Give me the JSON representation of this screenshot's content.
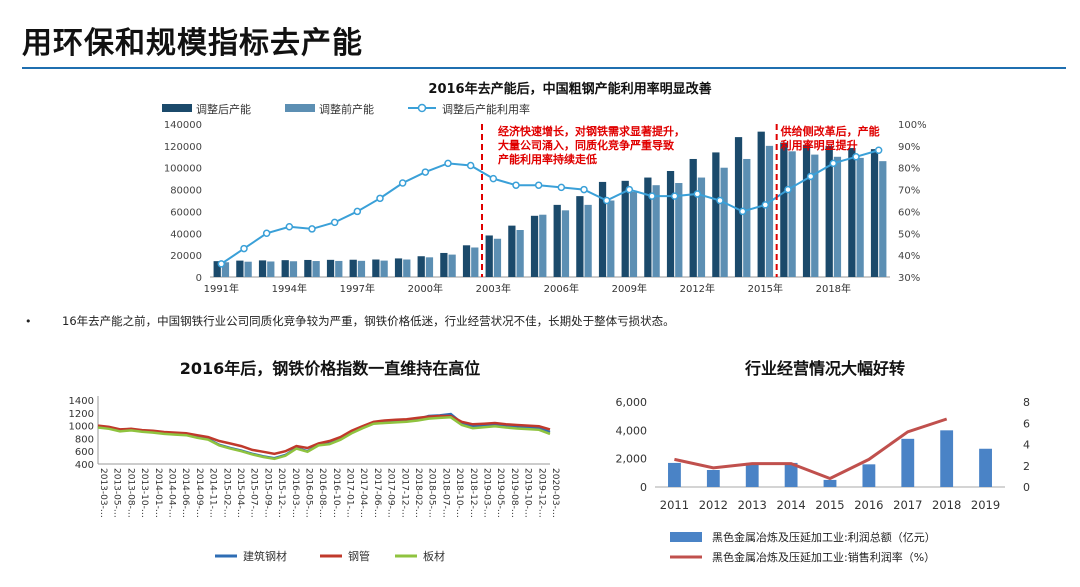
{
  "page": {
    "title": "用环保和规模指标去产能"
  },
  "bullet": {
    "marker": "•",
    "text": "16年去产能之前，中国钢铁行业公司同质化竞争较为严重，钢铁价格低迷，行业经营状况不佳，长期处于整体亏损状态。"
  },
  "colors": {
    "dark_bar": "#1b4a6b",
    "light_bar": "#5c8fb3",
    "util_line": "#3aa0d8",
    "annotation": "#e00000",
    "rule": "#1f6fb0",
    "building": "#2e6db4",
    "pipe": "#c0392b",
    "plate": "#8fc33f",
    "profit_bar": "#4a83c6",
    "margin_line": "#c0504d"
  },
  "chart_data": [
    {
      "type": "bar",
      "title": "2016年去产能后，中国粗钢产能利用率明显改善",
      "series": [
        {
          "name": "调整后产能",
          "values": [
            14500,
            15000,
            15200,
            15400,
            15600,
            15700,
            15800,
            16000,
            17000,
            19000,
            22000,
            29000,
            38000,
            47000,
            56000,
            66000,
            74000,
            87000,
            88000,
            91000,
            97000,
            108000,
            114000,
            128000,
            133000,
            123000,
            121000,
            120000,
            118000,
            117000
          ]
        },
        {
          "name": "调整前产能",
          "values": [
            13500,
            14000,
            14200,
            14400,
            14600,
            14700,
            14800,
            15000,
            16000,
            18000,
            20500,
            27000,
            35000,
            43000,
            57000,
            61000,
            66000,
            70000,
            78000,
            84000,
            86000,
            91000,
            100000,
            108000,
            120000,
            115000,
            112000,
            110000,
            109000,
            106000
          ]
        },
        {
          "name": "调整后产能利用率",
          "axis": "right",
          "values": [
            36,
            43,
            50,
            53,
            52,
            55,
            60,
            66,
            73,
            78,
            82,
            81,
            75,
            72,
            72,
            71,
            70,
            65,
            70,
            67,
            67,
            68,
            65,
            60,
            63,
            70,
            76,
            82,
            85,
            88
          ]
        }
      ],
      "x": [
        1991,
        1992,
        1993,
        1994,
        1995,
        1996,
        1997,
        1998,
        1999,
        2000,
        2001,
        2002,
        2003,
        2004,
        2005,
        2006,
        2007,
        2008,
        2009,
        2010,
        2011,
        2012,
        2013,
        2014,
        2015,
        2016,
        2017,
        2018,
        2019,
        2020
      ],
      "x_tick_labels": [
        "1991年",
        "1994年",
        "1997年",
        "2000年",
        "2003年",
        "2006年",
        "2009年",
        "2012年",
        "2015年",
        "2018年"
      ],
      "x_tick_years": [
        1991,
        1994,
        1997,
        2000,
        2003,
        2006,
        2009,
        2012,
        2015,
        2018
      ],
      "y_left": {
        "range": [
          0,
          140000
        ],
        "ticks": [
          "0",
          "20000",
          "40000",
          "60000",
          "80000",
          "100000",
          "120000",
          "140000"
        ]
      },
      "y_right": {
        "range": [
          30,
          100
        ],
        "ticks": [
          "30%",
          "40%",
          "50%",
          "60%",
          "70%",
          "80%",
          "90%",
          "100%"
        ]
      },
      "annotations": [
        {
          "year": 2002.5,
          "lines": [
            "经济快速增长，对钢铁需求显著提升，",
            "大量公司涌入，同质化竞争严重导致",
            "产能利用率持续走低"
          ]
        },
        {
          "year": 2015.5,
          "lines": [
            "供给侧改革后，产能",
            "利用率明显提升"
          ]
        }
      ]
    },
    {
      "type": "line",
      "title": "2016年后，钢铁价格指数一直维持在高位",
      "y_ticks": [
        "1400",
        "1200",
        "1000",
        "800",
        "600",
        "400"
      ],
      "ylim": [
        400,
        1400
      ],
      "x_labels": [
        "2013-03-…",
        "2013-05-…",
        "2013-08-…",
        "2013-10-…",
        "2014-01-…",
        "2014-04-…",
        "2014-06-…",
        "2014-09-…",
        "2014-11-…",
        "2015-02-…",
        "2015-04-…",
        "2015-07-…",
        "2015-09-…",
        "2015-12-…",
        "2016-03-…",
        "2016-05-…",
        "2016-08-…",
        "2016-10-…",
        "2017-01-…",
        "2017-04-…",
        "2017-06-…",
        "2017-09-…",
        "2017-12-…",
        "2018-02-…",
        "2018-05-…",
        "2018-07-…",
        "2018-10-…",
        "2018-12-…",
        "2019-03-…",
        "2019-05-…",
        "2019-08-…",
        "2019-10-…",
        "2019-12-…",
        "2020-03-…"
      ],
      "series": [
        {
          "name": "建筑钢材",
          "values": [
            990,
            960,
            920,
            940,
            920,
            900,
            880,
            870,
            860,
            820,
            790,
            700,
            650,
            610,
            560,
            520,
            490,
            540,
            650,
            600,
            700,
            720,
            790,
            900,
            980,
            1050,
            1060,
            1070,
            1080,
            1100,
            1150,
            1160,
            1180,
            1040,
            990,
            1000,
            1020,
            1000,
            980,
            970,
            960,
            900
          ]
        },
        {
          "name": "钢管",
          "values": [
            1000,
            980,
            940,
            950,
            930,
            920,
            900,
            890,
            880,
            850,
            820,
            760,
            720,
            680,
            620,
            590,
            560,
            600,
            680,
            650,
            720,
            760,
            820,
            920,
            990,
            1060,
            1080,
            1090,
            1100,
            1120,
            1140,
            1150,
            1150,
            1060,
            1020,
            1030,
            1040,
            1020,
            1010,
            1000,
            990,
            940
          ]
        },
        {
          "name": "板材",
          "values": [
            970,
            950,
            910,
            925,
            905,
            890,
            870,
            860,
            850,
            810,
            780,
            690,
            640,
            600,
            550,
            510,
            480,
            530,
            640,
            590,
            690,
            710,
            780,
            880,
            960,
            1030,
            1040,
            1050,
            1060,
            1080,
            1110,
            1120,
            1130,
            1010,
            960,
            975,
            990,
            970,
            955,
            945,
            935,
            870
          ]
        }
      ]
    },
    {
      "type": "bar",
      "title": "行业经营情况大幅好转",
      "categories": [
        "2011",
        "2012",
        "2013",
        "2014",
        "2015",
        "2016",
        "2017",
        "2018",
        "2019"
      ],
      "series": [
        {
          "name": "黑色金属冶炼及压延加工业:利润总额（亿元）",
          "values": [
            1700,
            1200,
            1700,
            1700,
            500,
            1600,
            3400,
            4000,
            2700
          ]
        },
        {
          "name": "黑色金属冶炼及压延加工业:销售利润率（%）",
          "axis": "right",
          "values": [
            2.6,
            1.8,
            2.2,
            2.2,
            0.8,
            2.6,
            5.2,
            6.4,
            null
          ]
        }
      ],
      "y_left": {
        "range": [
          0,
          6000
        ],
        "ticks": [
          "0",
          "2,000",
          "4,000",
          "6,000"
        ]
      },
      "y_right": {
        "range": [
          0,
          8
        ],
        "ticks": [
          "0",
          "2",
          "4",
          "6",
          "8"
        ]
      }
    }
  ]
}
